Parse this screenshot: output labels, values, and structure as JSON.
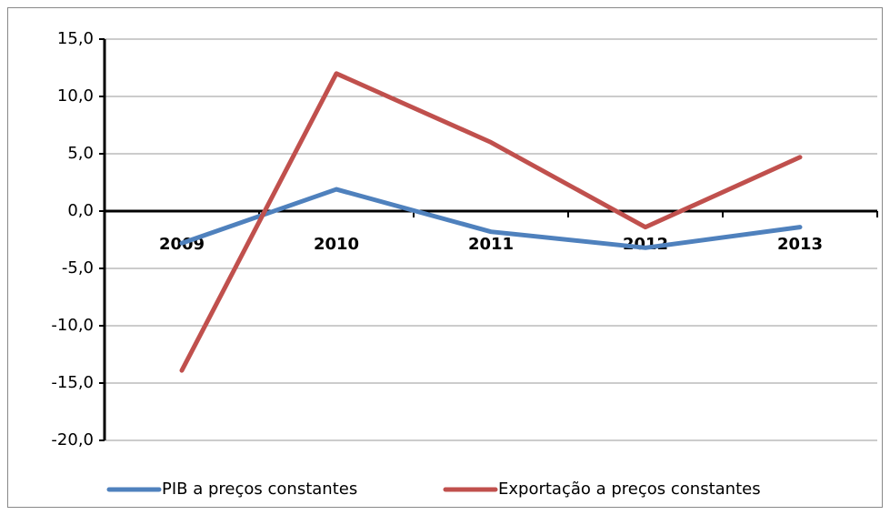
{
  "chart_data": {
    "type": "line",
    "categories": [
      "2009",
      "2010",
      "2011",
      "2012",
      "2013"
    ],
    "series": [
      {
        "name": "PIB a preços constantes",
        "color": "#4f81bd",
        "values": [
          -2.8,
          1.9,
          -1.8,
          -3.2,
          -1.4
        ]
      },
      {
        "name": "Exportação a preços constantes",
        "color": "#c0504d",
        "values": [
          -13.9,
          12.0,
          6.0,
          -1.4,
          4.7
        ]
      }
    ],
    "ylim": [
      -20,
      15
    ],
    "yticks": [
      {
        "value": -20,
        "label": "-20,0"
      },
      {
        "value": -15,
        "label": "-15,0"
      },
      {
        "value": -10,
        "label": "-10,0"
      },
      {
        "value": -5,
        "label": "-5,0"
      },
      {
        "value": 0,
        "label": "0,0"
      },
      {
        "value": 5,
        "label": "5,0"
      },
      {
        "value": 10,
        "label": "10,0"
      },
      {
        "value": 15,
        "label": "15,0"
      }
    ],
    "grid": true,
    "legend": "bottom"
  }
}
